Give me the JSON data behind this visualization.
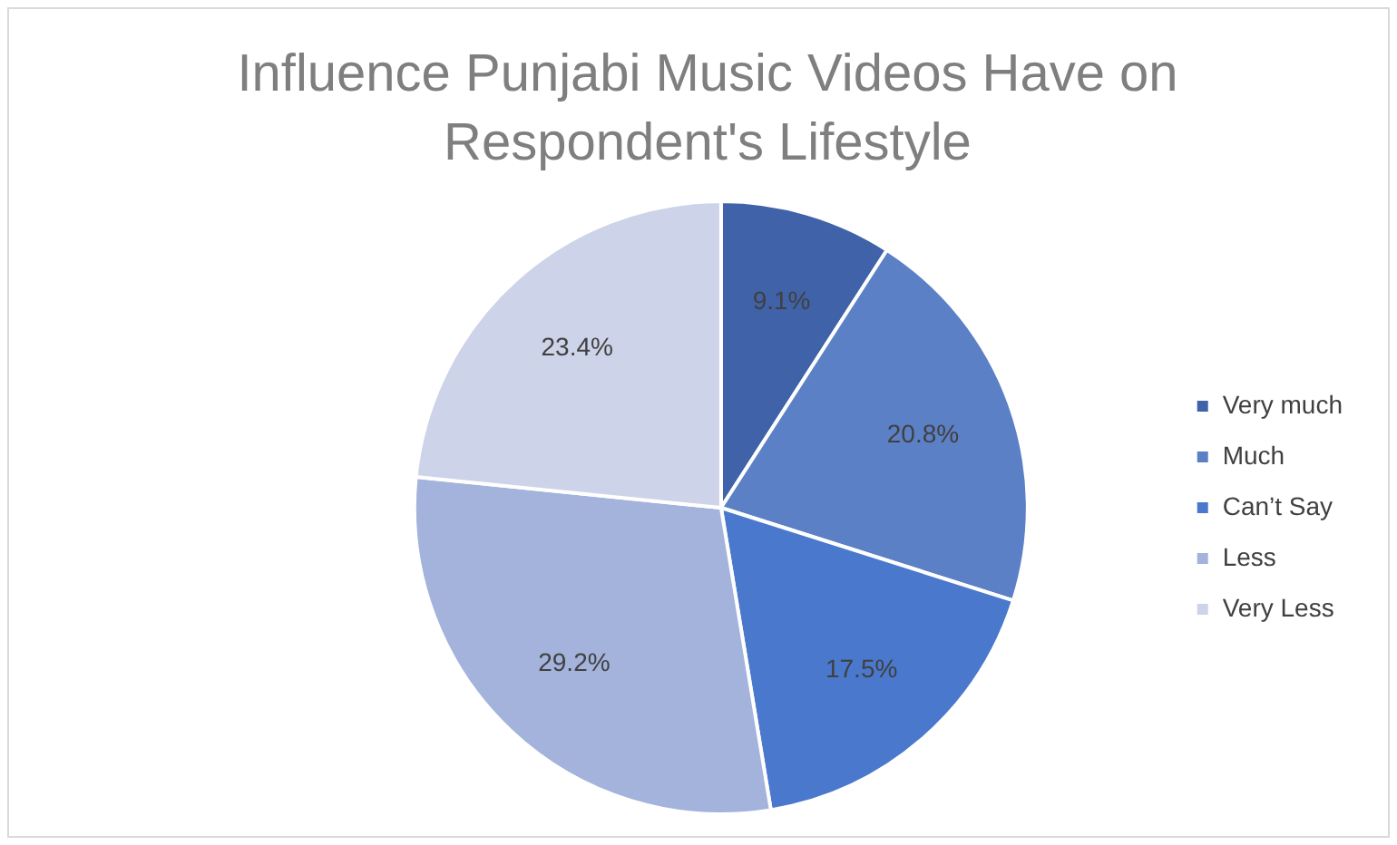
{
  "chart_data": {
    "type": "pie",
    "title": "Influence Punjabi Music Videos Have on Respondent's Lifestyle",
    "categories": [
      "Very much",
      "Much",
      "Can’t Say",
      "Less",
      "Very Less"
    ],
    "values": [
      9.1,
      20.8,
      17.5,
      29.2,
      23.4
    ],
    "colors": [
      "#3f62a8",
      "#5b80c6",
      "#4a78cc",
      "#a4b3dc",
      "#cdd3e8"
    ],
    "value_labels": [
      "9.1%",
      "20.8%",
      "17.5%",
      "29.2%",
      "23.4%"
    ],
    "legend": "right"
  }
}
